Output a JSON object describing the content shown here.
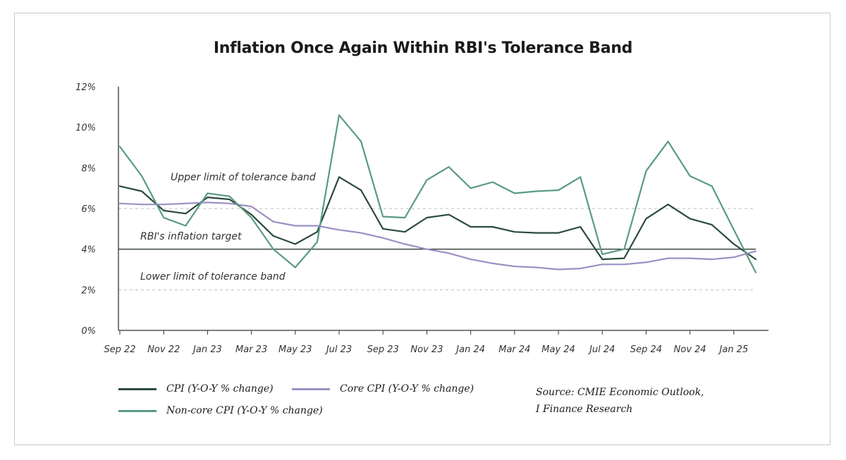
{
  "chart_data": {
    "type": "line",
    "title": "Inflation Once Again Within RBI's Tolerance Band",
    "x": [
      "Sep 22",
      "Oct 22",
      "Nov 22",
      "Dec 22",
      "Jan 23",
      "Feb 23",
      "Mar 23",
      "Apr 23",
      "May 23",
      "Jun 23",
      "Jul 23",
      "Aug 23",
      "Sep 23",
      "Oct 23",
      "Nov 23",
      "Dec 23",
      "Jan 24",
      "Feb 24",
      "Mar 24",
      "Apr 24",
      "May 24",
      "Jun 24",
      "Jul 24",
      "Aug 24",
      "Sep 24",
      "Oct 24",
      "Nov 24",
      "Dec 24",
      "Jan 25",
      "Feb 25"
    ],
    "x_tick_labels": [
      "Sep 22",
      "Nov 22",
      "Jan 23",
      "Mar 23",
      "May 23",
      "Jul 23",
      "Sep 23",
      "Nov 23",
      "Jan 24",
      "Mar 24",
      "May 24",
      "Jul 24",
      "Sep 24",
      "Nov 24",
      "Jan 25"
    ],
    "y_tick_labels": [
      "0%",
      "2%",
      "4%",
      "6%",
      "8%",
      "10%",
      "12%"
    ],
    "ylim": [
      0,
      12
    ],
    "series": [
      {
        "name": "CPI (Y-O-Y % change)",
        "color": "#2b4a3c",
        "values": [
          7.1,
          6.85,
          5.9,
          5.75,
          6.55,
          6.45,
          5.7,
          4.65,
          4.25,
          4.85,
          7.55,
          6.9,
          5.0,
          4.85,
          5.55,
          5.7,
          5.1,
          5.1,
          4.85,
          4.8,
          4.8,
          5.1,
          3.5,
          3.55,
          5.5,
          6.2,
          5.5,
          5.2,
          4.25,
          3.5
        ]
      },
      {
        "name": "Core CPI (Y-O-Y % change)",
        "color": "#9b90c4",
        "values": [
          6.25,
          6.2,
          6.2,
          6.25,
          6.3,
          6.25,
          6.1,
          5.35,
          5.15,
          5.15,
          4.95,
          4.8,
          4.55,
          4.25,
          4.0,
          3.8,
          3.5,
          3.3,
          3.15,
          3.1,
          3.0,
          3.05,
          3.25,
          3.25,
          3.35,
          3.55,
          3.55,
          3.5,
          3.6,
          3.9
        ]
      },
      {
        "name": "Non-core CPI (Y-O-Y % change)",
        "color": "#5a9a82",
        "values": [
          9.05,
          7.6,
          5.55,
          5.15,
          6.75,
          6.6,
          5.55,
          4.0,
          3.1,
          4.35,
          10.6,
          9.3,
          5.6,
          5.55,
          7.4,
          8.05,
          7.0,
          7.3,
          6.75,
          6.85,
          6.9,
          7.55,
          3.75,
          4.0,
          7.85,
          9.3,
          7.6,
          7.1,
          4.95,
          2.85
        ]
      }
    ],
    "reference_lines": [
      {
        "label": "Upper limit of tolerance band",
        "value": 6,
        "style": "dashed"
      },
      {
        "label": "RBI's inflation target",
        "value": 4,
        "style": "solid"
      },
      {
        "label": "Lower limit of tolerance band",
        "value": 2,
        "style": "dashed"
      }
    ],
    "grid": false,
    "legend": "bottom",
    "source": [
      "Source: CMIE Economic Outlook,",
      "I Finance Research"
    ]
  }
}
